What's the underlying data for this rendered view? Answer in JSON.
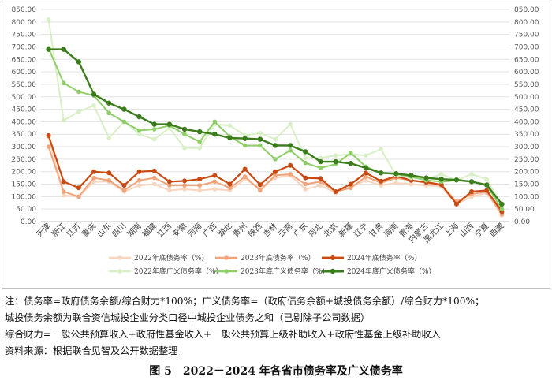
{
  "chart_data": {
    "type": "line",
    "categories": [
      "天津",
      "浙江",
      "江苏",
      "重庆",
      "山东",
      "四川",
      "湖南",
      "福建",
      "江西",
      "安徽",
      "河南",
      "广西",
      "湖北",
      "贵州",
      "陕西",
      "吉林",
      "云南",
      "广东",
      "河北",
      "北京",
      "新疆",
      "辽宁",
      "甘肃",
      "海南",
      "青海",
      "内蒙古",
      "黑龙江",
      "上海",
      "山西",
      "宁夏",
      "西藏"
    ],
    "ylim": [
      0,
      850
    ],
    "yticks": [
      0,
      50,
      100,
      150,
      200,
      250,
      300,
      350,
      400,
      450,
      500,
      550,
      600,
      650,
      700,
      750,
      800,
      850
    ],
    "ytick_labels": [
      "0.00",
      "50.00",
      "100.00",
      "150.00",
      "200.00",
      "250.00",
      "300.00",
      "350.00",
      "400.00",
      "450.00",
      "500.00",
      "550.00",
      "600.00",
      "650.00",
      "700.00",
      "750.00",
      "800.00",
      "850.00"
    ],
    "grid": true,
    "legend_position": "bottom",
    "series": [
      {
        "name": "2022年底债务率（%）",
        "color": "#f8d5bf",
        "width": 2,
        "values": [
          340,
          105,
          100,
          160,
          160,
          120,
          145,
          150,
          125,
          130,
          125,
          130,
          125,
          170,
          135,
          175,
          185,
          130,
          145,
          115,
          140,
          165,
          145,
          155,
          150,
          145,
          140,
          70,
          100,
          115,
          25
        ]
      },
      {
        "name": "2023年底债务率（%）",
        "color": "#f1a47a",
        "width": 2,
        "values": [
          300,
          120,
          100,
          175,
          165,
          125,
          165,
          175,
          145,
          145,
          145,
          160,
          135,
          180,
          125,
          185,
          190,
          150,
          160,
          120,
          135,
          180,
          155,
          175,
          165,
          155,
          145,
          80,
          110,
          120,
          30
        ]
      },
      {
        "name": "2024年底债务率（%）",
        "color": "#c94a10",
        "width": 2.2,
        "values": [
          345,
          160,
          135,
          200,
          195,
          145,
          200,
          203,
          160,
          163,
          170,
          185,
          150,
          210,
          148,
          200,
          225,
          175,
          173,
          120,
          150,
          195,
          162,
          182,
          165,
          158,
          148,
          70,
          120,
          125,
          40
        ]
      },
      {
        "name": "2022年底广义债务率（%）",
        "color": "#d9efc6",
        "width": 2,
        "values": [
          810,
          405,
          440,
          465,
          335,
          400,
          350,
          330,
          375,
          295,
          295,
          390,
          385,
          345,
          355,
          330,
          390,
          255,
          255,
          265,
          270,
          265,
          290,
          185,
          175,
          170,
          190,
          165,
          190,
          170,
          65
        ]
      },
      {
        "name": "2023年底广义债务率（%）",
        "color": "#8fce69",
        "width": 2,
        "values": [
          695,
          555,
          520,
          505,
          435,
          400,
          365,
          370,
          385,
          350,
          320,
          400,
          340,
          305,
          305,
          250,
          285,
          235,
          215,
          230,
          275,
          220,
          195,
          190,
          180,
          165,
          160,
          165,
          160,
          145,
          50
        ]
      },
      {
        "name": "2024年底广义债务率（%）",
        "color": "#3b7d1c",
        "width": 2.4,
        "values": [
          690,
          690,
          640,
          510,
          475,
          450,
          420,
          390,
          390,
          370,
          360,
          350,
          335,
          333,
          330,
          305,
          305,
          280,
          240,
          240,
          233,
          215,
          195,
          192,
          185,
          175,
          170,
          167,
          160,
          147,
          70
        ]
      }
    ]
  },
  "notes": [
    "注：债务率=政府债务余额/综合财力*100%；广义债务率=（政府债务余额+城投债务余额）/综合财力*100%；",
    "城投债务余额为联合资信城投企业分类口径中城投企业债务之和（已剔除子公司数据）",
    "综合财力=一般公共预算收入+政府性基金收入+一般公共预算上级补助收入+政府性基金上级补助收入",
    "资料来源：根据联合见智及公开数据整理"
  ],
  "figure_title": "图 5　2022－2024 年各省市债务率及广义债务率"
}
